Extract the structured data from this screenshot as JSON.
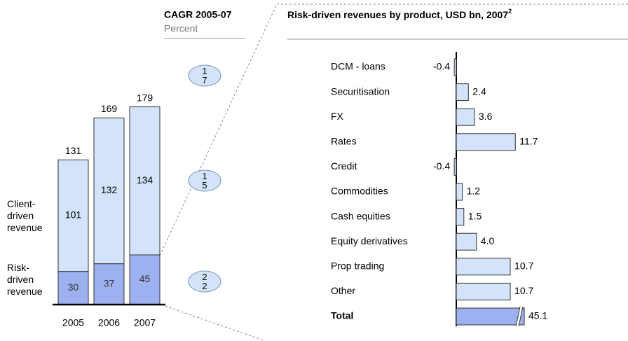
{
  "chart_data": [
    {
      "type": "stacked_bar",
      "categories": [
        "2005",
        "2006",
        "2007"
      ],
      "series": [
        {
          "name": "Risk-driven revenue",
          "color": "#9db1f0",
          "values": [
            30,
            37,
            45
          ]
        },
        {
          "name": "Client-driven revenue",
          "color": "#d3e3fa",
          "values": [
            101,
            132,
            134
          ]
        }
      ],
      "totals": [
        131,
        169,
        179
      ],
      "ylim": [
        0,
        180
      ],
      "cagr_title": "CAGR 2005-07",
      "cagr_unit": "Percent",
      "cagr": [
        17,
        15,
        22
      ]
    },
    {
      "type": "hbar",
      "title": "Risk-driven revenues by product, USD bn, 2007",
      "title_footnote": "2",
      "categories": [
        "DCM - loans",
        "Securitisation",
        "FX",
        "Rates",
        "Credit",
        "Commodities",
        "Cash equities",
        "Equity derivatives",
        "Prop trading",
        "Other",
        "Total"
      ],
      "values": [
        -0.4,
        2.4,
        3.6,
        11.7,
        -0.4,
        1.2,
        1.5,
        4.0,
        10.7,
        10.7,
        45.1
      ],
      "value_labels": [
        "-0.4",
        "2.4",
        "3.6",
        "11.7",
        "-0.4",
        "1.2",
        "1.5",
        "4.0",
        "10.7",
        "10.7",
        "45.1"
      ],
      "colors": [
        "#d3e3fa",
        "#d3e3fa",
        "#d3e3fa",
        "#d3e3fa",
        "#d3e3fa",
        "#d3e3fa",
        "#d3e3fa",
        "#d3e3fa",
        "#d3e3fa",
        "#d3e3fa",
        "#9db1f0"
      ],
      "axis_break": true
    }
  ]
}
